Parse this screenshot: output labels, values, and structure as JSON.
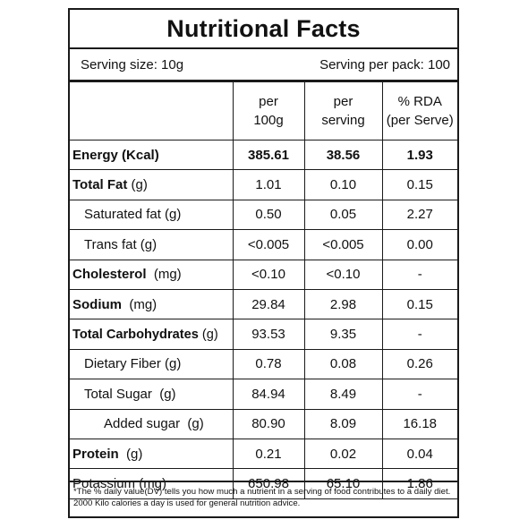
{
  "title": "Nutritional Facts",
  "serving": {
    "size_label": "Serving size: 10g",
    "per_pack_label": "Serving per pack: 100"
  },
  "columns": {
    "per_100g": "per\n100g",
    "per_serving": "per\nserving",
    "rda": "% RDA\n(per Serve)"
  },
  "rows": [
    {
      "name": "Energy (Kcal)",
      "unit": "",
      "per_100g": "385.61",
      "per_serving": "38.56",
      "rda": "1.93"
    },
    {
      "name": "Total Fat",
      "unit": " (g)",
      "per_100g": "1.01",
      "per_serving": "0.10",
      "rda": "0.15"
    },
    {
      "name": "Saturated fat (g)",
      "unit": "",
      "per_100g": "0.50",
      "per_serving": "0.05",
      "rda": "2.27"
    },
    {
      "name": "Trans fat (g)",
      "unit": "",
      "per_100g": "<0.005",
      "per_serving": "<0.005",
      "rda": "0.00"
    },
    {
      "name": "Cholesterol",
      "unit": "  (mg)",
      "per_100g": "<0.10",
      "per_serving": "<0.10",
      "rda": "-"
    },
    {
      "name": "Sodium",
      "unit": "  (mg)",
      "per_100g": "29.84",
      "per_serving": "2.98",
      "rda": "0.15"
    },
    {
      "name": "Total Carbohydrates",
      "unit": " (g)",
      "per_100g": "93.53",
      "per_serving": "9.35",
      "rda": "-"
    },
    {
      "name": "Dietary Fiber (g)",
      "unit": "",
      "per_100g": "0.78",
      "per_serving": "0.08",
      "rda": "0.26"
    },
    {
      "name": "Total Sugar  (g)",
      "unit": "",
      "per_100g": "84.94",
      "per_serving": "8.49",
      "rda": "-"
    },
    {
      "name": "Added sugar  (g)",
      "unit": "",
      "per_100g": "80.90",
      "per_serving": "8.09",
      "rda": "16.18"
    },
    {
      "name": "Protein",
      "unit": "  (g)",
      "per_100g": "0.21",
      "per_serving": "0.02",
      "rda": "0.04"
    },
    {
      "name": "Potassium (mg)",
      "unit": "",
      "per_100g": "650.98",
      "per_serving": "65.10",
      "rda": "1.86"
    }
  ],
  "footnote": "*The % daily value(DV) tells you how much a nutrient in a serving of food contributes to a daily diet. 2000 Kilo calories a day is used for general nutrition advice."
}
